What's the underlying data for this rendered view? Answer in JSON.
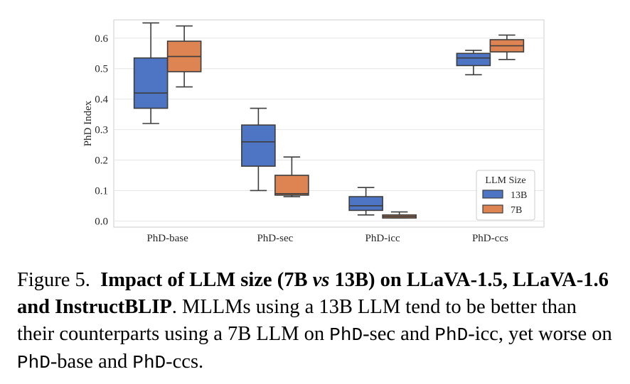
{
  "chart_data": {
    "type": "box",
    "categories": [
      "PhD-base",
      "PhD-sec",
      "PhD-icc",
      "PhD-ccs"
    ],
    "ylabel": "PhD Index",
    "xlabel": "",
    "ylim": [
      -0.02,
      0.66
    ],
    "yticks": [
      "0.0",
      "0.1",
      "0.2",
      "0.3",
      "0.4",
      "0.5",
      "0.6"
    ],
    "grid": true,
    "legend": {
      "title": "LLM Size",
      "placement": "lower-right"
    },
    "series": [
      {
        "name": "13B",
        "color": "#4e74c4",
        "boxes": [
          {
            "whislo": 0.32,
            "q1": 0.37,
            "med": 0.42,
            "q3": 0.535,
            "whishi": 0.65
          },
          {
            "whislo": 0.1,
            "q1": 0.18,
            "med": 0.26,
            "q3": 0.315,
            "whishi": 0.37
          },
          {
            "whislo": 0.02,
            "q1": 0.035,
            "med": 0.05,
            "q3": 0.08,
            "whishi": 0.11
          },
          {
            "whislo": 0.48,
            "q1": 0.51,
            "med": 0.535,
            "q3": 0.55,
            "whishi": 0.56
          }
        ]
      },
      {
        "name": "7B",
        "color": "#dd8452",
        "boxes": [
          {
            "whislo": 0.44,
            "q1": 0.49,
            "med": 0.54,
            "q3": 0.59,
            "whishi": 0.64
          },
          {
            "whislo": 0.08,
            "q1": 0.085,
            "med": 0.09,
            "q3": 0.15,
            "whishi": 0.21
          },
          {
            "whislo": 0.01,
            "q1": 0.01,
            "med": 0.015,
            "q3": 0.02,
            "whishi": 0.03
          },
          {
            "whislo": 0.53,
            "q1": 0.555,
            "med": 0.575,
            "q3": 0.595,
            "whishi": 0.61
          }
        ]
      }
    ]
  },
  "caption": {
    "prefix": "Figure 5.",
    "bold_a": "Impact of LLM size (7B",
    "bold_vs": "vs",
    "bold_b": "13B) on LLaVA-1.5, LLaVA-1.6 and InstructBLIP",
    "t1": ". MLLMs using a 13B LLM tend to be better than their counterparts using a 7B LLM on",
    "m1": "PhD",
    "t2": "-sec and",
    "m2": "PhD",
    "t3": "-icc, yet worse on",
    "m3": "PhD",
    "t4": "-base and",
    "m4": "PhD",
    "t5": "-ccs."
  }
}
